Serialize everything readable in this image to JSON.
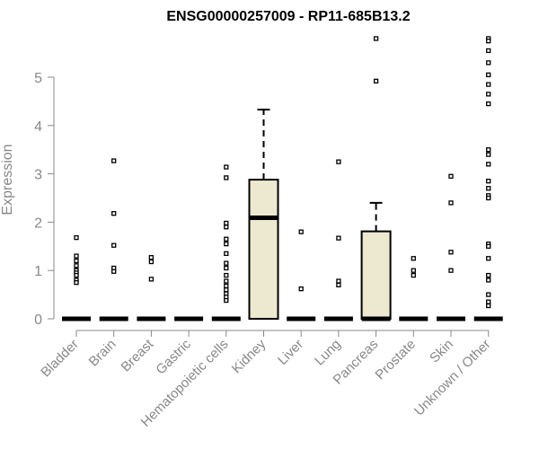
{
  "chart_data": {
    "type": "box",
    "title": "ENSG00000257009 - RP11-685B13.2",
    "xlabel": "",
    "ylabel": "Expression",
    "ylim": [
      0,
      5.8
    ],
    "yticks": [
      0,
      1,
      2,
      3,
      4,
      5
    ],
    "box_fill": "#ede8d0",
    "categories": [
      "Bladder",
      "Brain",
      "Breast",
      "Gastric",
      "Hematopoietic cells",
      "Kidney",
      "Liver",
      "Lung",
      "Pancreas",
      "Prostate",
      "Skin",
      "Unknown / Other"
    ],
    "boxes": [
      {
        "min": 0,
        "q1": 0,
        "median": 0,
        "q3": 0,
        "max": 0,
        "outliers": [
          1.68,
          1.3,
          1.2,
          1.1,
          1.0,
          0.95,
          0.9,
          0.8,
          0.75
        ]
      },
      {
        "min": 0,
        "q1": 0,
        "median": 0,
        "q3": 0,
        "max": 0,
        "outliers": [
          3.27,
          2.18,
          1.52,
          1.05,
          0.98
        ]
      },
      {
        "min": 0,
        "q1": 0,
        "median": 0,
        "q3": 0,
        "max": 0,
        "outliers": [
          1.27,
          1.18,
          0.82
        ]
      },
      {
        "min": 0,
        "q1": 0,
        "median": 0,
        "q3": 0,
        "max": 0,
        "outliers": []
      },
      {
        "min": 0,
        "q1": 0,
        "median": 0,
        "q3": 0,
        "max": 0,
        "outliers": [
          3.14,
          2.92,
          1.98,
          1.9,
          1.65,
          1.55,
          1.35,
          1.15,
          1.05,
          0.9,
          0.78,
          0.68,
          0.6,
          0.52,
          0.45,
          0.38
        ]
      },
      {
        "min": 0,
        "q1": 0,
        "median": 2.09,
        "q3": 2.88,
        "max": 4.33,
        "outliers": []
      },
      {
        "min": 0,
        "q1": 0,
        "median": 0,
        "q3": 0,
        "max": 0,
        "outliers": [
          1.8,
          0.62
        ]
      },
      {
        "min": 0,
        "q1": 0,
        "median": 0,
        "q3": 0,
        "max": 0,
        "outliers": [
          3.25,
          1.67,
          0.78,
          0.7
        ]
      },
      {
        "min": 0,
        "q1": 0,
        "median": 0,
        "q3": 1.81,
        "max": 2.4,
        "outliers": [
          5.8,
          4.92
        ]
      },
      {
        "min": 0,
        "q1": 0,
        "median": 0,
        "q3": 0,
        "max": 0,
        "outliers": [
          1.25,
          1.0,
          0.9
        ]
      },
      {
        "min": 0,
        "q1": 0,
        "median": 0,
        "q3": 0,
        "max": 0,
        "outliers": [
          2.95,
          2.4,
          1.38,
          1.0
        ]
      },
      {
        "min": 0,
        "q1": 0,
        "median": 0,
        "q3": 0,
        "max": 0,
        "outliers": [
          5.8,
          5.75,
          5.55,
          5.3,
          5.05,
          4.85,
          4.65,
          4.45,
          3.5,
          3.4,
          3.2,
          2.85,
          2.7,
          2.55,
          2.5,
          1.55,
          1.5,
          1.25,
          0.9,
          0.8,
          0.5,
          0.35,
          0.27
        ]
      }
    ]
  }
}
